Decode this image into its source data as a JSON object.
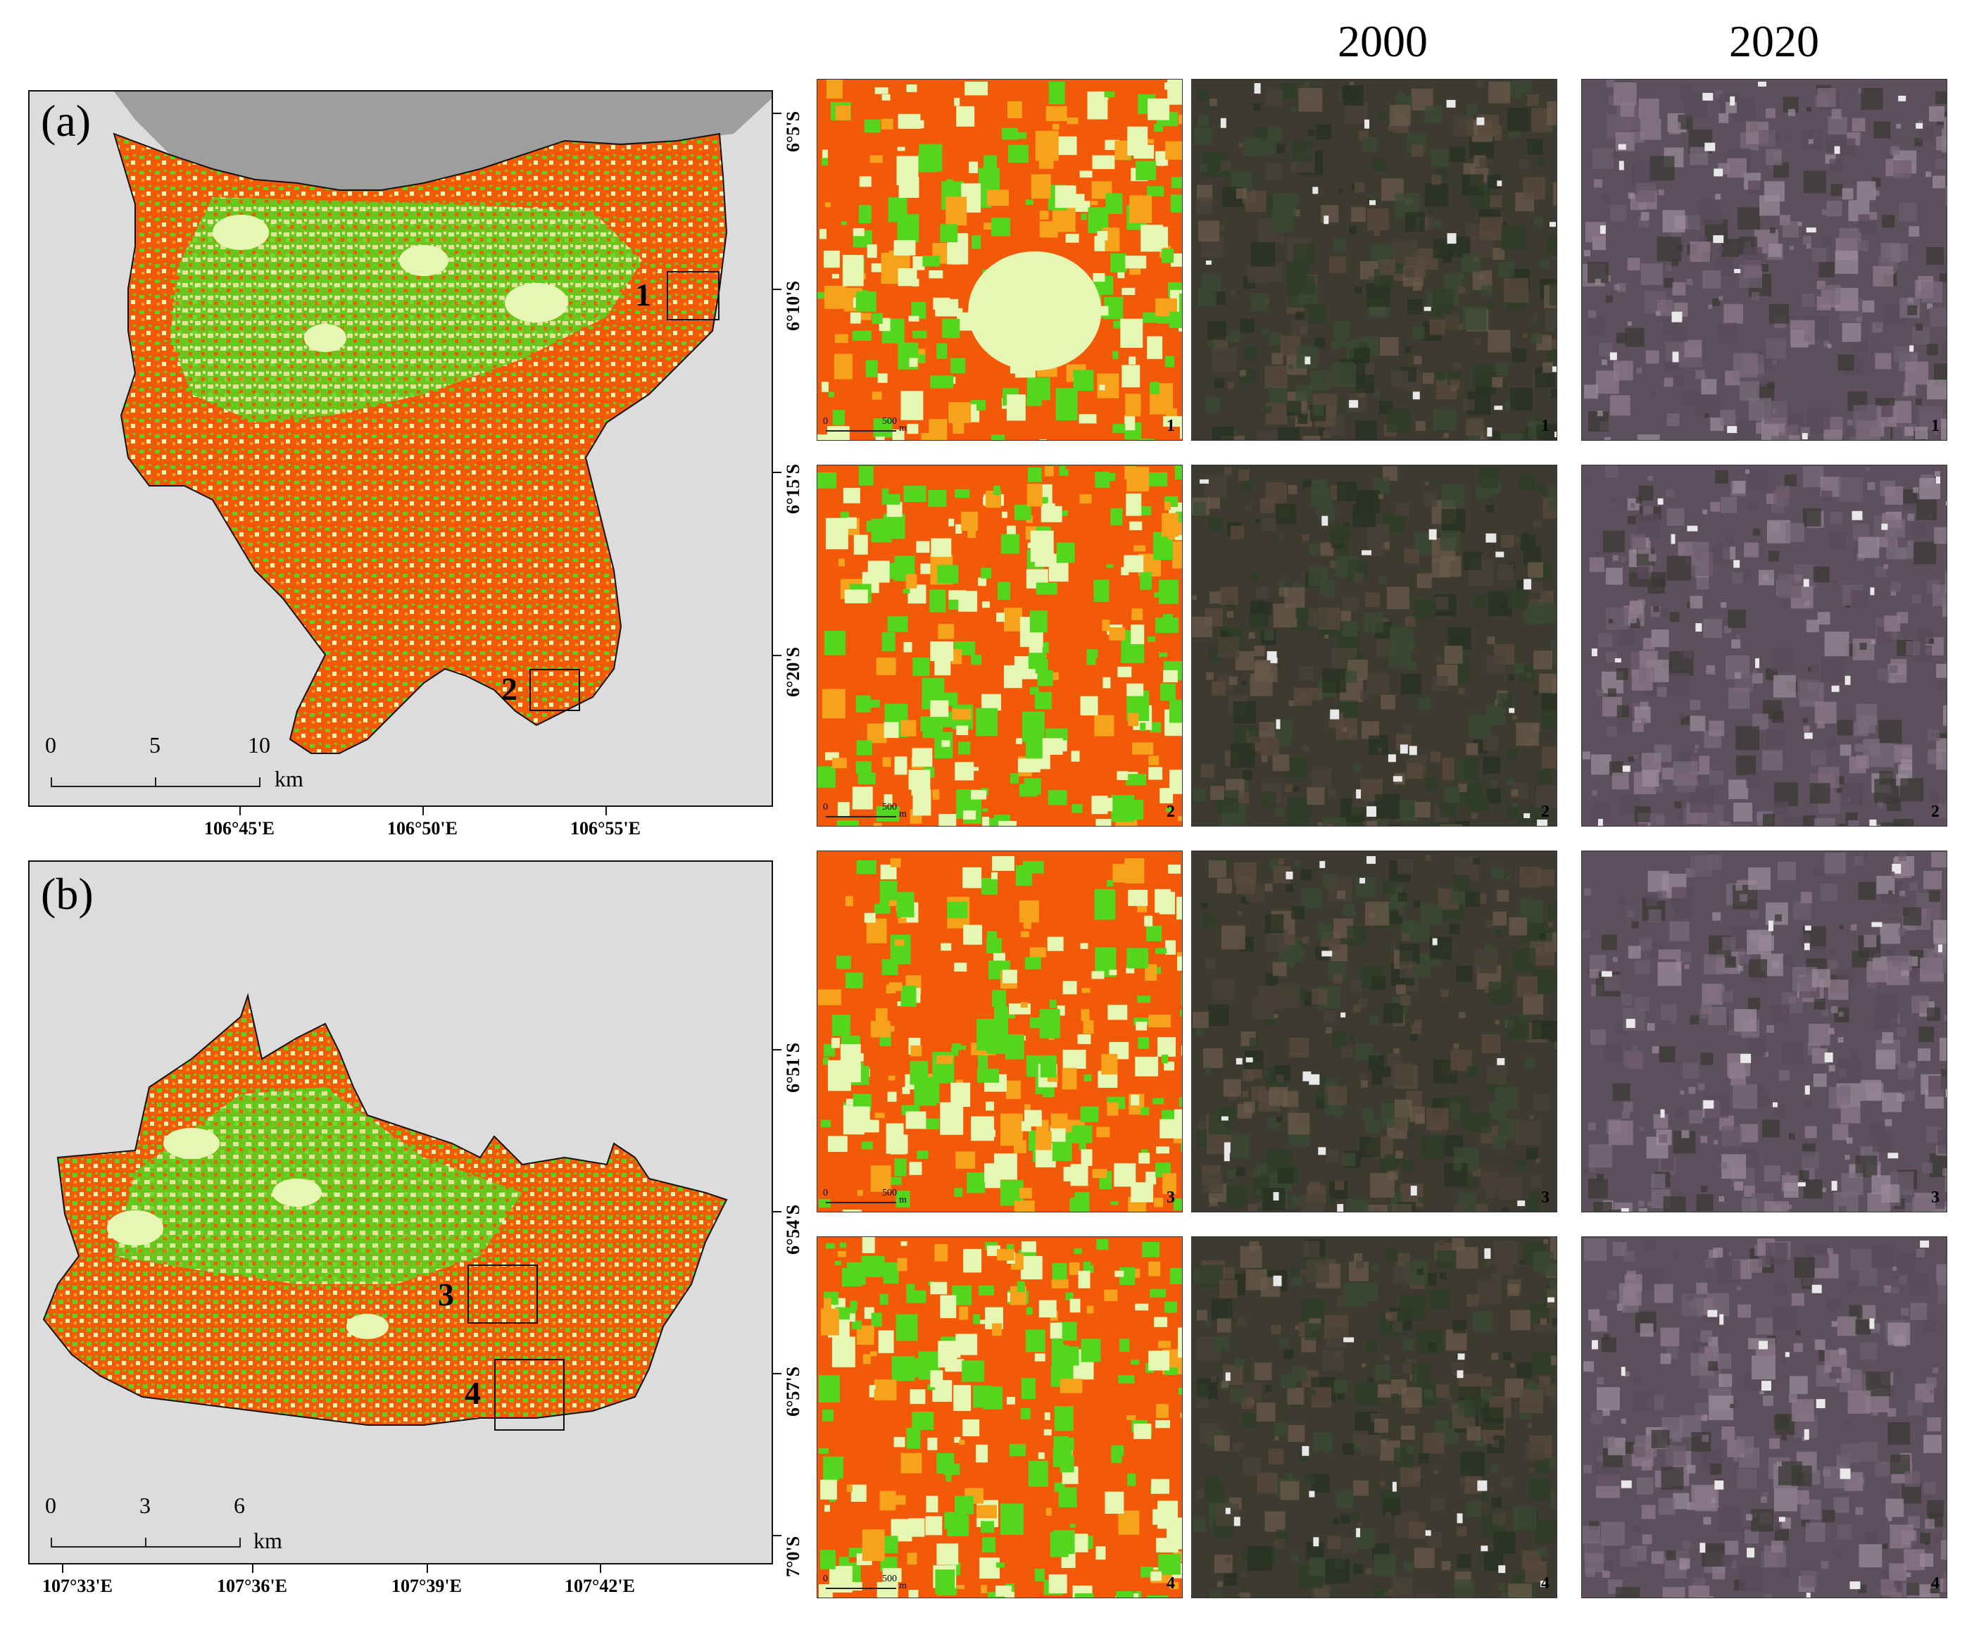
{
  "panel_a": {
    "label": "(a)",
    "lat_labels": [
      "6°5'S",
      "6°10'S",
      "6°15'S",
      "6°20'S"
    ],
    "lon_labels": [
      "106°45'E",
      "106°50'E",
      "106°55'E"
    ],
    "scale": {
      "ticks": [
        "0",
        "5",
        "10"
      ],
      "unit": "km"
    },
    "boxes": [
      "1",
      "2"
    ]
  },
  "panel_b": {
    "label": "(b)",
    "lat_labels": [
      "6°51'S",
      "6°54'S",
      "6°57'S",
      "7°0'S"
    ],
    "lon_labels": [
      "107°33'E",
      "107°36'E",
      "107°39'E",
      "107°42'E"
    ],
    "scale": {
      "ticks": [
        "0",
        "3",
        "6"
      ],
      "unit": "km"
    },
    "boxes": [
      "3",
      "4"
    ]
  },
  "columns": {
    "year_1": "2000",
    "year_2": "2020"
  },
  "tiles": {
    "scale_ticks": [
      "0",
      "500"
    ],
    "scale_unit": "m",
    "numbers": [
      "1",
      "2",
      "3",
      "4"
    ]
  },
  "colors": {
    "urban": "#f25a0a",
    "expansion": "#f7a21b",
    "vegetation": "#55d61e",
    "light_green": "#e6f7b4",
    "sea": "#9e9e9e",
    "background": "#dcdcdc"
  }
}
